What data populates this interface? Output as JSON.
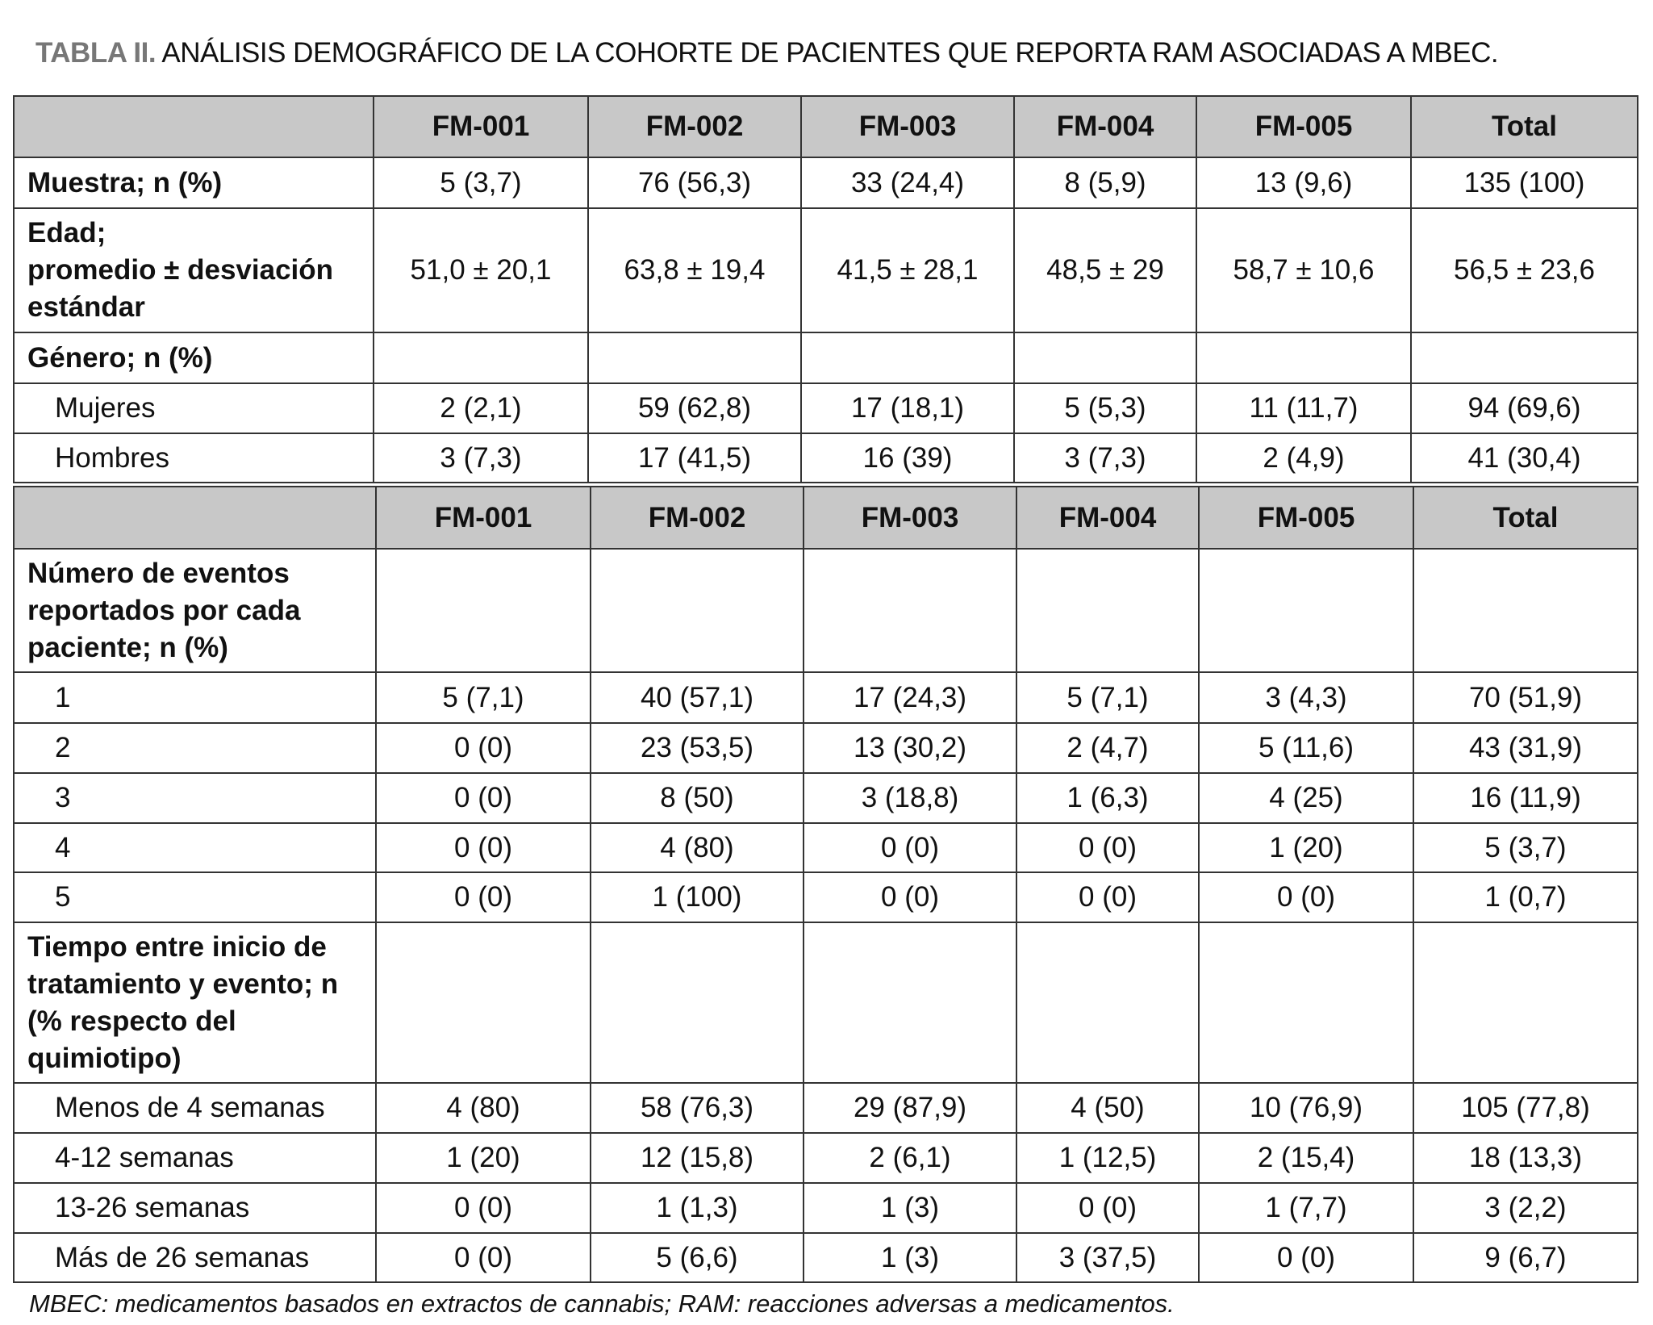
{
  "title": {
    "label": "TABLA II.",
    "text": "ANÁLISIS DEMOGRÁFICO DE LA COHORTE DE PACIENTES QUE REPORTA RAM ASOCIADAS A MBEC."
  },
  "table1": {
    "headers": [
      "",
      "FM-001",
      "FM-002",
      "FM-003",
      "FM-004",
      "FM-005",
      "Total"
    ],
    "rows": [
      {
        "label": "Muestra; n (%)",
        "style": "bold",
        "cells": [
          "5 (3,7)",
          "76 (56,3)",
          "33 (24,4)",
          "8 (5,9)",
          "13 (9,6)",
          "135 (100)"
        ]
      },
      {
        "label": "Edad;\npromedio ± desviación estándar",
        "style": "bold",
        "cells": [
          "51,0 ± 20,1",
          "63,8 ± 19,4",
          "41,5 ± 28,1",
          "48,5 ± 29",
          "58,7 ± 10,6",
          "56,5 ± 23,6"
        ]
      },
      {
        "label": "Género; n (%)",
        "style": "bold",
        "cells": [
          "",
          "",
          "",
          "",
          "",
          ""
        ]
      },
      {
        "label": "Mujeres",
        "style": "sub",
        "cells": [
          "2 (2,1)",
          "59 (62,8)",
          "17 (18,1)",
          "5 (5,3)",
          "11 (11,7)",
          "94 (69,6)"
        ]
      },
      {
        "label": "Hombres",
        "style": "sub",
        "cells": [
          "3 (7,3)",
          "17 (41,5)",
          "16 (39)",
          "3 (7,3)",
          "2 (4,9)",
          "41 (30,4)"
        ]
      }
    ]
  },
  "table2": {
    "headers": [
      "",
      "FM-001",
      "FM-002",
      "FM-003",
      "FM-004",
      "FM-005",
      "Total"
    ],
    "rows": [
      {
        "label": "Número de eventos reportados por cada paciente; n (%)",
        "style": "bold",
        "cells": [
          "",
          "",
          "",
          "",
          "",
          ""
        ]
      },
      {
        "label": "1",
        "style": "sub",
        "cells": [
          "5 (7,1)",
          "40 (57,1)",
          "17 (24,3)",
          "5 (7,1)",
          "3 (4,3)",
          "70 (51,9)"
        ]
      },
      {
        "label": "2",
        "style": "sub",
        "cells": [
          "0 (0)",
          "23 (53,5)",
          "13 (30,2)",
          "2 (4,7)",
          "5 (11,6)",
          "43 (31,9)"
        ]
      },
      {
        "label": "3",
        "style": "sub",
        "cells": [
          "0 (0)",
          "8 (50)",
          "3 (18,8)",
          "1 (6,3)",
          "4 (25)",
          "16 (11,9)"
        ]
      },
      {
        "label": "4",
        "style": "sub",
        "cells": [
          "0 (0)",
          "4 (80)",
          "0 (0)",
          "0 (0)",
          "1 (20)",
          "5 (3,7)"
        ]
      },
      {
        "label": "5",
        "style": "sub",
        "cells": [
          "0 (0)",
          "1 (100)",
          "0 (0)",
          "0 (0)",
          "0 (0)",
          "1 (0,7)"
        ]
      },
      {
        "label": "Tiempo entre inicio de tratamiento y evento; n (% respecto del quimiotipo)",
        "style": "bold",
        "cells": [
          "",
          "",
          "",
          "",
          "",
          ""
        ]
      },
      {
        "label": "Menos de 4 semanas",
        "style": "sub",
        "cells": [
          "4 (80)",
          "58 (76,3)",
          "29 (87,9)",
          "4 (50)",
          "10 (76,9)",
          "105 (77,8)"
        ]
      },
      {
        "label": "4-12 semanas",
        "style": "sub",
        "cells": [
          "1 (20)",
          "12 (15,8)",
          "2 (6,1)",
          "1 (12,5)",
          "2 (15,4)",
          "18 (13,3)"
        ]
      },
      {
        "label": "13-26 semanas",
        "style": "sub",
        "cells": [
          "0 (0)",
          "1 (1,3)",
          "1 (3)",
          "0 (0)",
          "1 (7,7)",
          "3 (2,2)"
        ]
      },
      {
        "label": "Más de 26 semanas",
        "style": "sub",
        "cells": [
          "0 (0)",
          "5 (6,6)",
          "1 (3)",
          "3 (37,5)",
          "0 (0)",
          "9 (6,7)"
        ]
      }
    ]
  },
  "footnote": "MBEC: medicamentos basados en extractos de cannabis; RAM: reacciones adversas a medicamentos.",
  "colors": {
    "header_bg": "#c8c8c8",
    "title_label": "#777777",
    "border": "#333333"
  }
}
